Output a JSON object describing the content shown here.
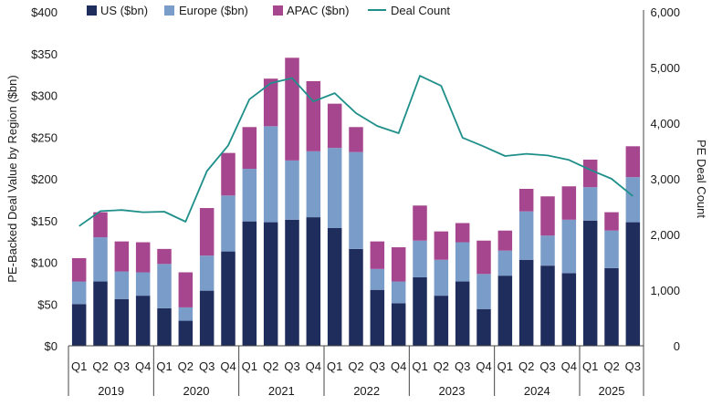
{
  "chart_data": {
    "type": "bar",
    "stacked": true,
    "categories": [
      "Q1",
      "Q2",
      "Q3",
      "Q4",
      "Q1",
      "Q2",
      "Q3",
      "Q4",
      "Q1",
      "Q2",
      "Q3",
      "Q4",
      "Q1",
      "Q2",
      "Q3",
      "Q4",
      "Q1",
      "Q2",
      "Q3",
      "Q4",
      "Q1",
      "Q2",
      "Q3",
      "Q4",
      "Q1",
      "Q2",
      "Q3"
    ],
    "year_groups": [
      {
        "label": "2019",
        "count": 4
      },
      {
        "label": "2020",
        "count": 4
      },
      {
        "label": "2021",
        "count": 4
      },
      {
        "label": "2022",
        "count": 4
      },
      {
        "label": "2023",
        "count": 4
      },
      {
        "label": "2024",
        "count": 4
      },
      {
        "label": "2025",
        "count": 3
      }
    ],
    "series": [
      {
        "name": "US ($bn)",
        "color": "#1f2d5c",
        "values": [
          50,
          77,
          56,
          60,
          45,
          30,
          66,
          113,
          149,
          148,
          151,
          154,
          141,
          116,
          67,
          51,
          82,
          60,
          77,
          44,
          84,
          103,
          96,
          87,
          150,
          93,
          148
        ]
      },
      {
        "name": "Europe ($bn)",
        "color": "#7a9cc8",
        "values": [
          27,
          53,
          33,
          28,
          53,
          16,
          42,
          67,
          63,
          115,
          71,
          79,
          96,
          116,
          25,
          26,
          44,
          43,
          47,
          42,
          30,
          58,
          36,
          64,
          40,
          45,
          54
        ]
      },
      {
        "name": "APAC ($bn)",
        "color": "#a6468f",
        "values": [
          28,
          30,
          36,
          36,
          18,
          42,
          57,
          51,
          50,
          57,
          123,
          84,
          53,
          30,
          33,
          41,
          42,
          34,
          23,
          40,
          24,
          27,
          47,
          40,
          33,
          22,
          37
        ]
      }
    ],
    "line_series": {
      "name": "Deal Count",
      "color": "#1f8f8a",
      "axis": "right",
      "values": [
        2150,
        2420,
        2440,
        2400,
        2410,
        2230,
        3140,
        3600,
        4430,
        4720,
        4810,
        4390,
        4540,
        4180,
        3950,
        3820,
        4850,
        4670,
        3740,
        3580,
        3410,
        3450,
        3420,
        3340,
        3160,
        3000,
        2690
      ]
    },
    "ylabel": "PE-Backed Deal Value by Region ($bn)",
    "ylabel_right": "PE Deal Count",
    "ylim": [
      0,
      400
    ],
    "ylim_right": [
      0,
      6000
    ],
    "yticks": [
      "$0",
      "$50",
      "$100",
      "$150",
      "$200",
      "$250",
      "$300",
      "$350",
      "$400"
    ],
    "yticks_right": [
      "0",
      "1,000",
      "2,000",
      "3,000",
      "4,000",
      "5,000",
      "6,000"
    ],
    "legend_position": "top",
    "legend": [
      "US ($bn)",
      "Europe ($bn)",
      "APAC ($bn)",
      "Deal Count"
    ],
    "grid": false
  }
}
